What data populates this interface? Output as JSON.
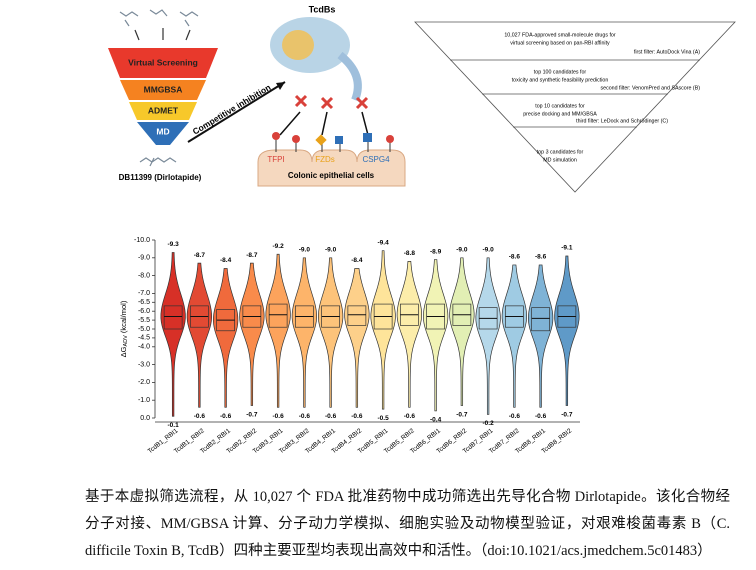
{
  "diagram": {
    "funnel": {
      "steps": [
        "Virtual Screening",
        "MMGBSA",
        "ADMET",
        "MD"
      ],
      "compound": "DB11399 (Dirlotapide)"
    },
    "mechanism": {
      "protein": "TcdBs",
      "arrow": "Competitive inhibition",
      "receptors": [
        "TFPI",
        "FZDs",
        "CSPG4"
      ],
      "cell": "Colonic epithelial cells"
    },
    "pipeline": {
      "stages": [
        [
          "10,027 FDA-approved small-molecule drugs for",
          "virtual screening based on pan-RBI affinity"
        ],
        [
          "top 100 candidates for",
          "toxicity and synthetic feasibility prediction"
        ],
        [
          "top 10 candidates for",
          "precise docking and MM/GBSA"
        ],
        [
          "top 3 candidates for",
          "MD simulation"
        ]
      ],
      "filters": [
        "first filter: AutoDock Vina (A)",
        "second filter: VenomPred and SAscore (B)",
        "third filter: LeDock and Schrödinger (C)"
      ]
    }
  },
  "chart_data": {
    "type": "violin",
    "ylabel_main": "ΔG",
    "ylabel_sub": "ADV",
    "ylabel_unit": "(kcal/mol)",
    "categories": [
      "TcdB1_RBI1",
      "TcdB1_RBI2",
      "TcdB2_RBI1",
      "TcdB2_RBI2",
      "TcdB3_RBI1",
      "TcdB3_RBI2",
      "TcdB4_RBI1",
      "TcdB4_RBI2",
      "TcdB5_RBI1",
      "TcdB5_RBI2",
      "TcdB6_RBI1",
      "TcdB6_RBI2",
      "TcdB7_RBI1",
      "TcdB7_RBI2",
      "TcdB8_RBI1",
      "TcdB8_RBI2"
    ],
    "colors": [
      "#d73027",
      "#e24a33",
      "#f06a3c",
      "#f98b4b",
      "#fca35c",
      "#fdb46a",
      "#fdc37a",
      "#fdd08a",
      "#fee49a",
      "#fcedaa",
      "#f1f3b5",
      "#e2efb4",
      "#b5d8ea",
      "#9fcbe3",
      "#7fb3d6",
      "#5f9ac8"
    ],
    "min": [
      -9.3,
      -8.7,
      -8.4,
      -8.7,
      -9.2,
      -9.0,
      -9.0,
      -8.4,
      -9.4,
      -8.8,
      -8.9,
      -9.0,
      -9.0,
      -8.6,
      -8.6,
      -9.1
    ],
    "min_labels": [
      "-9.3",
      "-8.7",
      "-8.4",
      "-8.7",
      "-9.2",
      "-9.0",
      "-9.0",
      "-8.4",
      "-9.4",
      "-8.8",
      "-8.9",
      "-9.0",
      "-9.0",
      "-8.6",
      "-8.6",
      "-9.1"
    ],
    "max": [
      -0.1,
      -0.6,
      -0.6,
      -0.7,
      -0.6,
      -0.6,
      -0.6,
      -0.6,
      -0.5,
      -0.6,
      -0.4,
      -0.7,
      -0.2,
      -0.6,
      -0.6,
      -0.7
    ],
    "q1": [
      -6.3,
      -6.3,
      -6.1,
      -6.3,
      -6.4,
      -6.3,
      -6.3,
      -6.3,
      -6.4,
      -6.4,
      -6.4,
      -6.4,
      -6.2,
      -6.3,
      -6.2,
      -6.3
    ],
    "median": [
      -5.7,
      -5.7,
      -5.5,
      -5.7,
      -5.8,
      -5.7,
      -5.7,
      -5.8,
      -5.7,
      -5.8,
      -5.7,
      -5.8,
      -5.6,
      -5.7,
      -5.6,
      -5.7
    ],
    "q3": [
      -5.0,
      -5.1,
      -4.9,
      -5.1,
      -5.1,
      -5.1,
      -5.1,
      -5.2,
      -5.0,
      -5.2,
      -5.0,
      -5.2,
      -5.0,
      -5.1,
      -4.9,
      -5.1
    ],
    "ylim": [
      0,
      -10
    ],
    "yticks": [
      {
        "value": 0,
        "label": "0.0"
      },
      {
        "value": -1,
        "label": "-1.0"
      },
      {
        "value": -2,
        "label": "-2.0"
      },
      {
        "value": -3,
        "label": "-3.0"
      },
      {
        "value": -4,
        "label": "-4.0"
      },
      -4.5,
      {
        "value": -5,
        "label": "-5.0"
      },
      -5.5,
      {
        "value": -6,
        "label": "-6.0"
      },
      -6.5,
      {
        "value": -7,
        "label": "-7.0"
      },
      {
        "value": -8,
        "label": "-8.0"
      },
      {
        "value": -9,
        "label": "-9.0"
      },
      {
        "value": -10,
        "label": "-10.0"
      }
    ]
  },
  "caption": "基于本虚拟筛选流程，从 10,027 个 FDA 批准药物中成功筛选出先导化合物 Dirlotapide。该化合物经分子对接、MM/GBSA 计算、分子动力学模拟、细胞实验及动物模型验证，对艰难梭菌毒素 B（C. difficile Toxin B, TcdB）四种主要亚型均表现出高效中和活性。（doi:10.1021/acs.jmedchem.5c01483）"
}
